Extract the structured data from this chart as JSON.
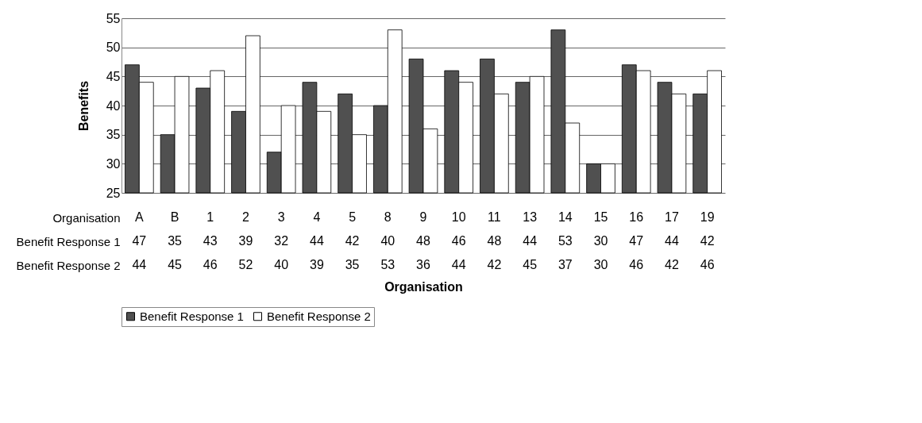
{
  "chart_data": {
    "type": "bar",
    "ylabel": "Benefits",
    "xlabel": "Organisation",
    "annotations": [
      "Organisation"
    ],
    "categories": [
      "A",
      "B",
      "1",
      "2",
      "3",
      "4",
      "5",
      "8",
      "9",
      "10",
      "11",
      "13",
      "14",
      "15",
      "16",
      "17",
      "19"
    ],
    "series": [
      {
        "name": "Benefit Response 1",
        "color": "#505050",
        "values": [
          47,
          35,
          43,
          39,
          32,
          44,
          42,
          40,
          48,
          46,
          48,
          44,
          53,
          30,
          47,
          44,
          42
        ]
      },
      {
        "name": "Benefit Response 2",
        "color": "#ffffff",
        "values": [
          44,
          45,
          46,
          52,
          40,
          39,
          35,
          53,
          36,
          44,
          42,
          45,
          37,
          30,
          46,
          42,
          46
        ]
      }
    ],
    "ylim": [
      25,
      55
    ],
    "yticks": [
      25,
      30,
      35,
      40,
      45,
      50,
      55
    ],
    "grid": "y",
    "legend": "bottom",
    "data_labels": true
  }
}
